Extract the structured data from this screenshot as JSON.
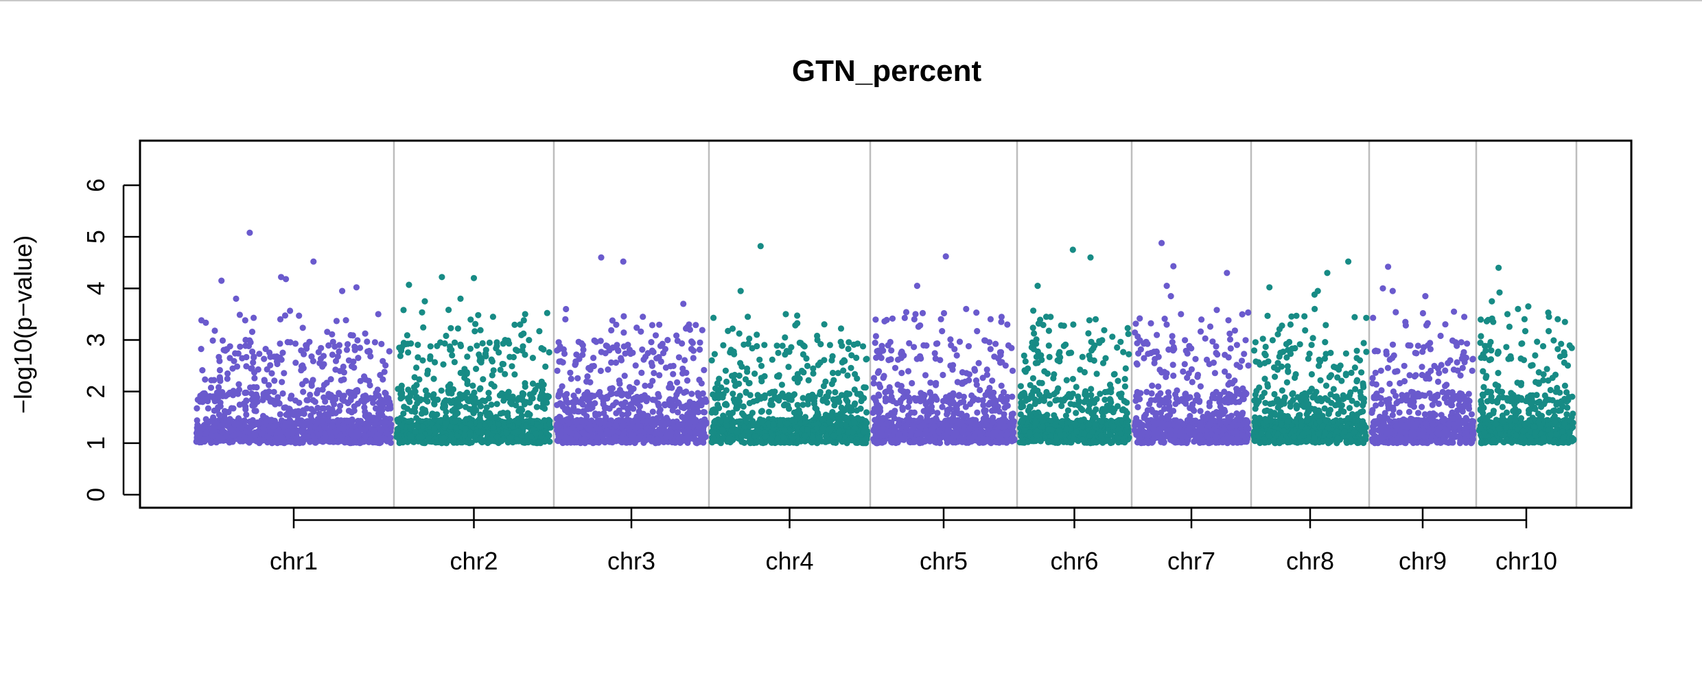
{
  "chart_data": {
    "type": "scatter",
    "title": "GTN_percent",
    "xlabel": "",
    "ylabel": "−log10(p−value)",
    "ylim": [
      -0.3,
      6.8
    ],
    "yticks": [
      0,
      1,
      2,
      3,
      4,
      5,
      6
    ],
    "grid": false,
    "legend": "none",
    "colors": {
      "odd": "#6a5acd",
      "even": "#178b85"
    },
    "chromosomes": [
      {
        "name": "chr1",
        "color": "#6a5acd",
        "peaks": [
          5.08,
          4.52,
          4.22,
          4.18,
          4.15,
          4.02,
          3.95,
          3.8,
          3.5,
          3.4
        ]
      },
      {
        "name": "chr2",
        "color": "#178b85",
        "peaks": [
          4.22,
          4.2,
          4.07,
          3.8,
          3.75,
          3.5,
          3.45,
          3.3
        ]
      },
      {
        "name": "chr3",
        "color": "#6a5acd",
        "peaks": [
          4.6,
          4.52,
          3.7,
          3.45,
          3.4,
          3.3,
          3.25
        ]
      },
      {
        "name": "chr4",
        "color": "#178b85",
        "peaks": [
          4.82,
          3.95,
          3.5,
          3.45,
          3.22,
          3.0
        ]
      },
      {
        "name": "chr5",
        "color": "#6a5acd",
        "peaks": [
          4.62,
          4.05,
          3.6,
          3.52,
          3.4,
          3.3
        ]
      },
      {
        "name": "chr6",
        "color": "#178b85",
        "peaks": [
          4.75,
          4.6,
          4.05,
          3.45,
          3.4,
          3.3
        ]
      },
      {
        "name": "chr7",
        "color": "#6a5acd",
        "peaks": [
          4.88,
          4.43,
          4.3,
          4.05,
          3.85,
          3.5,
          3.3
        ]
      },
      {
        "name": "chr8",
        "color": "#178b85",
        "peaks": [
          4.52,
          4.3,
          4.02,
          3.95,
          3.88,
          3.6,
          3.3
        ]
      },
      {
        "name": "chr9",
        "color": "#6a5acd",
        "peaks": [
          4.42,
          4.0,
          3.95,
          3.85,
          3.55,
          3.35
        ]
      },
      {
        "name": "chr10",
        "color": "#178b85",
        "peaks": [
          4.4,
          3.92,
          3.75,
          3.65,
          3.6,
          3.45,
          3.35
        ]
      }
    ],
    "baseline_min": 1.0
  }
}
